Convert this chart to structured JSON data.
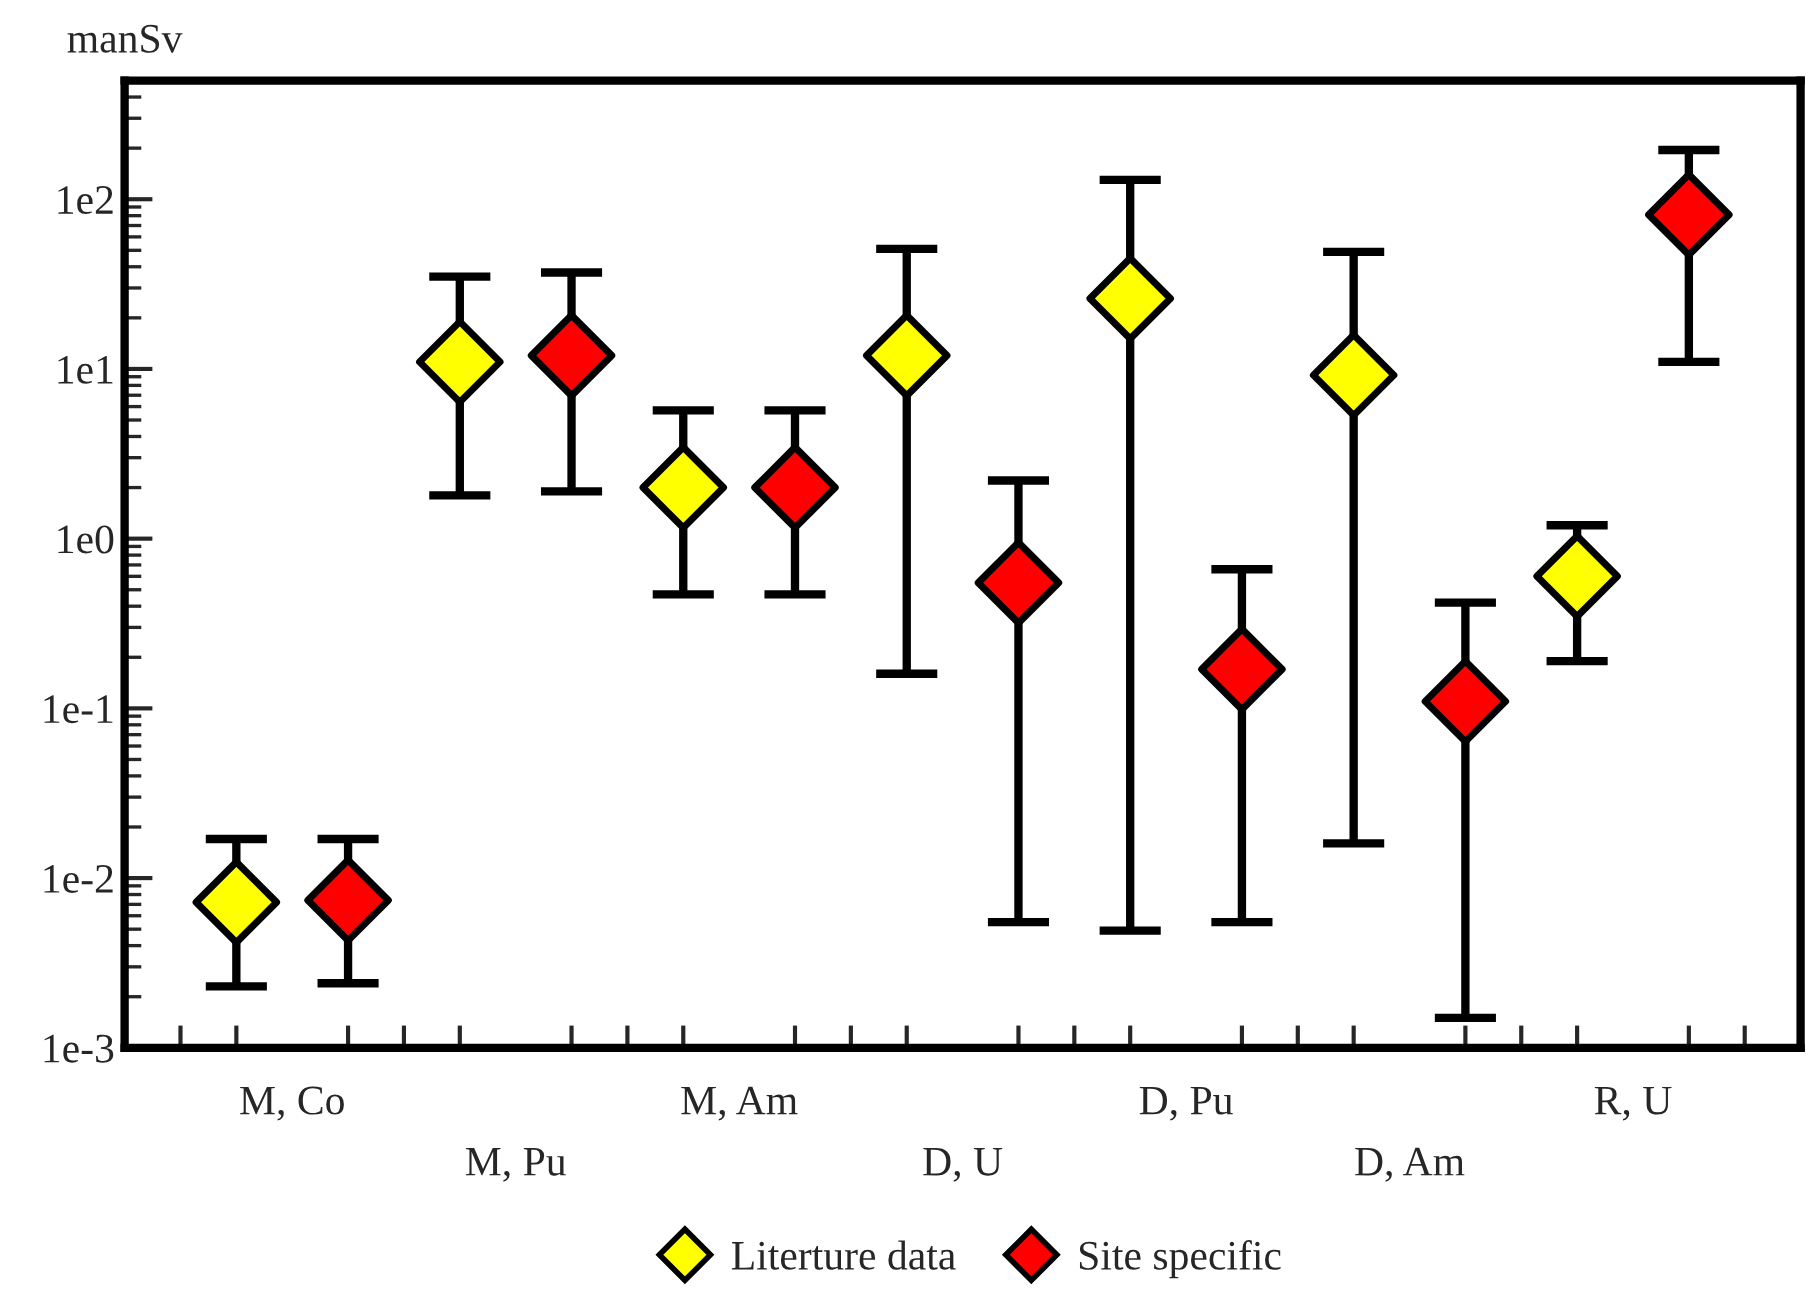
{
  "chart_data": {
    "type": "scatter",
    "ylabel": "manSv",
    "log": true,
    "legend": "bottom",
    "marker": "diamond",
    "grid": false,
    "categories": [
      "M, Co",
      "M, Pu",
      "M, Am",
      "D, U",
      "D, Pu",
      "D, Am",
      "R, U"
    ],
    "ylim": [
      0.001,
      500
    ],
    "yticks": [
      {
        "value": 0.001,
        "label": "1e-3"
      },
      {
        "value": 0.01,
        "label": "1e-2"
      },
      {
        "value": 0.1,
        "label": "1e-1"
      },
      {
        "value": 1,
        "label": "1e0"
      },
      {
        "value": 10,
        "label": "1e1"
      },
      {
        "value": 100,
        "label": "1e2"
      }
    ],
    "series": [
      {
        "name": "Literture data",
        "color": "#ffff00",
        "values": [
          0.0072,
          11,
          2.0,
          12,
          26,
          9.2,
          0.6
        ],
        "errors": [
          [
            0.0023,
            0.017
          ],
          [
            1.8,
            35
          ],
          [
            0.47,
            5.7
          ],
          [
            0.16,
            51
          ],
          [
            0.0049,
            130
          ],
          [
            0.016,
            49
          ],
          [
            0.19,
            1.2
          ]
        ]
      },
      {
        "name": "Site specific",
        "color": "#ff0000",
        "values": [
          0.0074,
          12,
          2.0,
          0.55,
          0.17,
          0.11,
          81
        ],
        "errors": [
          [
            0.0024,
            0.017
          ],
          [
            1.9,
            37
          ],
          [
            0.47,
            5.7
          ],
          [
            0.0055,
            2.2
          ],
          [
            0.0055,
            0.66
          ],
          [
            0.0015,
            0.42
          ],
          [
            11,
            195
          ]
        ]
      }
    ]
  }
}
